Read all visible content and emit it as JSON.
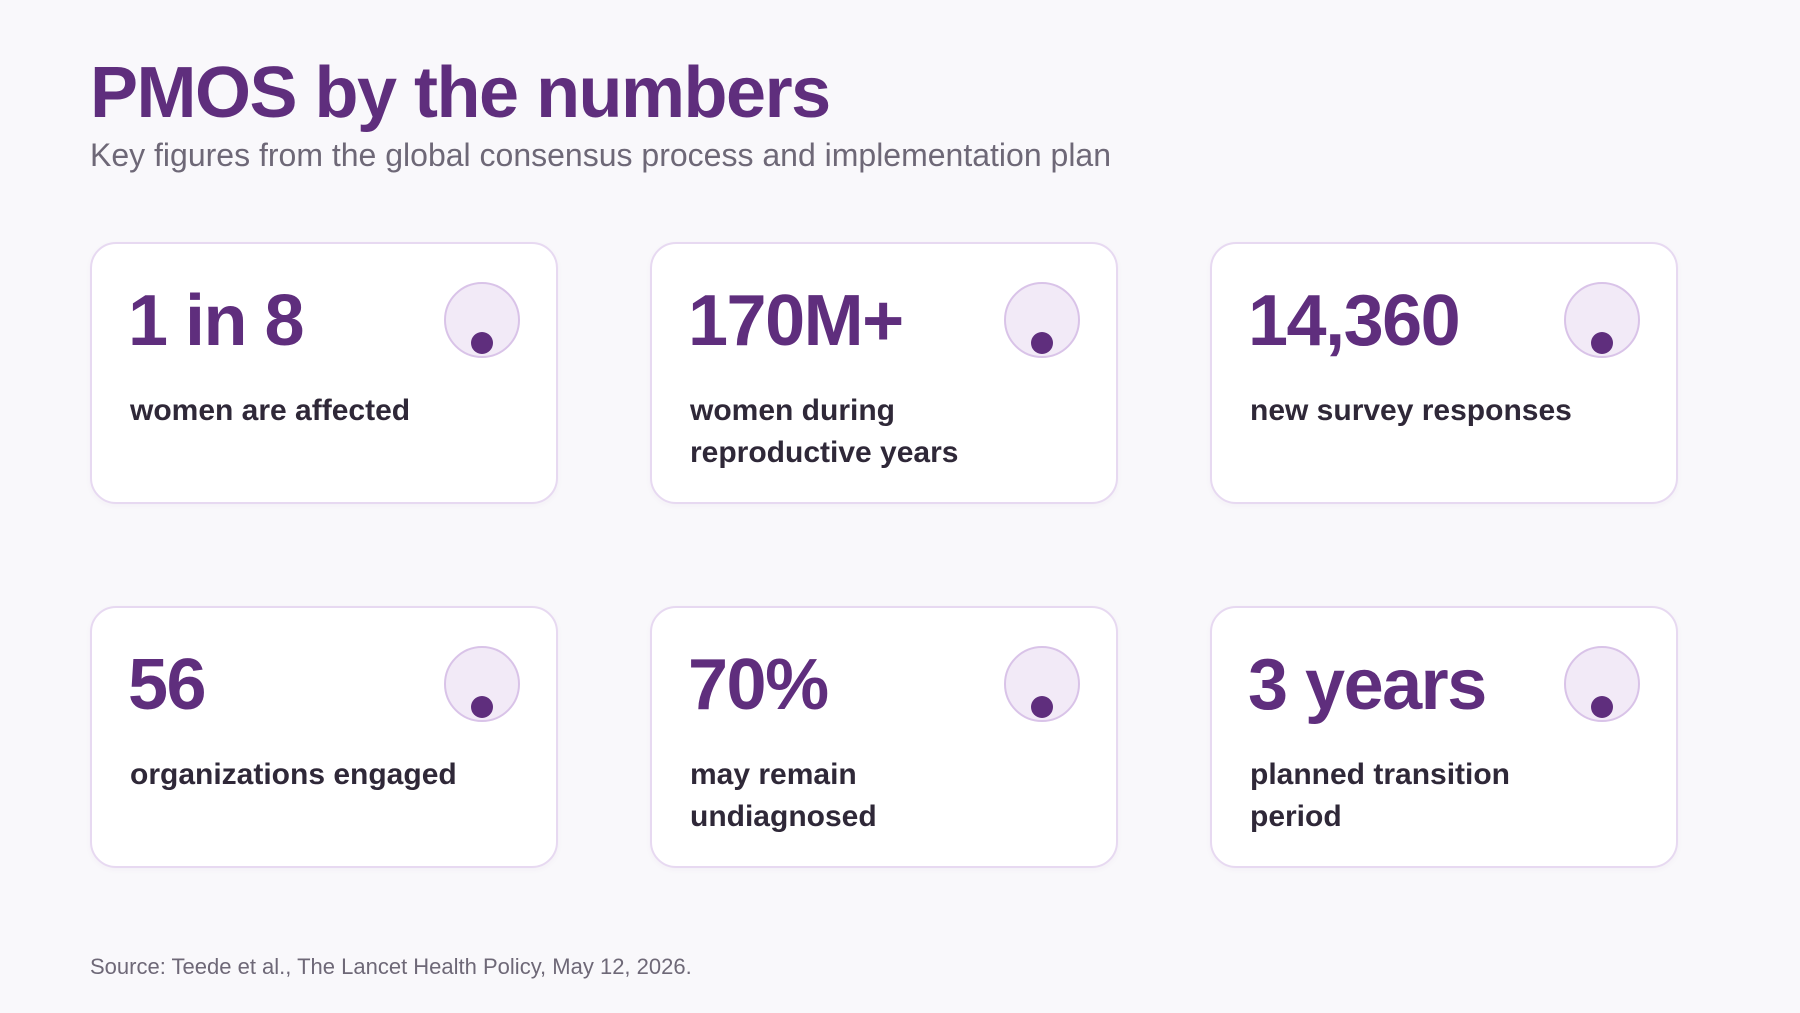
{
  "header": {
    "title": "PMOS by the numbers",
    "subtitle": "Key figures from the global consensus process and implementation plan"
  },
  "stats": [
    {
      "value": "1 in 8",
      "label": "women are affected",
      "icon": "circle-dot-icon"
    },
    {
      "value": "170M+",
      "label": "women during reproductive years",
      "icon": "circle-dot-icon"
    },
    {
      "value": "14,360",
      "label": "new survey responses",
      "icon": "circle-dot-icon"
    },
    {
      "value": "56",
      "label": "organizations engaged",
      "icon": "circle-dot-icon"
    },
    {
      "value": "70%",
      "label": "may remain undiagnosed",
      "icon": "circle-dot-icon"
    },
    {
      "value": "3 years",
      "label": "planned transition period",
      "icon": "circle-dot-icon"
    }
  ],
  "footer": {
    "source": "Source: Teede et al., The Lancet Health Policy, May 12, 2026."
  },
  "colors": {
    "accent": "#5f2e7d",
    "card_border": "#e7d9f1",
    "icon_fill": "#f2eaf7",
    "background": "#f9f8fb"
  }
}
